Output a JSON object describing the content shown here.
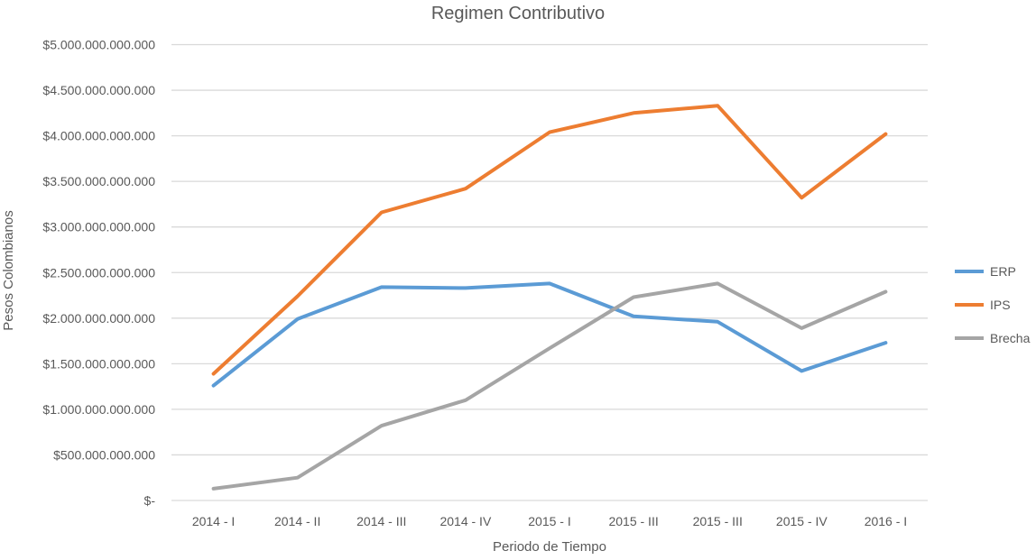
{
  "chart_data": {
    "type": "line",
    "title": "Regimen Contributivo",
    "xlabel": "Periodo de Tiempo",
    "ylabel": "Pesos Colombianos",
    "categories": [
      "2014 - I",
      "2014 - II",
      "2014 - III",
      "2014 - IV",
      "2015 - I",
      "2015 - III",
      "2015 - III",
      "2015 - IV",
      "2016 - I"
    ],
    "ylim": [
      0,
      5000000000000
    ],
    "ytick_values": [
      0,
      500000000000,
      1000000000000,
      1500000000000,
      2000000000000,
      2500000000000,
      3000000000000,
      3500000000000,
      4000000000000,
      4500000000000,
      5000000000000
    ],
    "ytick_labels": [
      "$-",
      "$500.000.000.000",
      "$1.000.000.000.000",
      "$1.500.000.000.000",
      "$2.000.000.000.000",
      "$2.500.000.000.000",
      "$3.000.000.000.000",
      "$3.500.000.000.000",
      "$4.000.000.000.000",
      "$4.500.000.000.000",
      "$5.000.000.000.000"
    ],
    "grid": true,
    "legend_position": "right",
    "series": [
      {
        "name": "ERP",
        "color": "#5B9BD5",
        "values": [
          1260000000000,
          1990000000000,
          2340000000000,
          2330000000000,
          2380000000000,
          2020000000000,
          1960000000000,
          1420000000000,
          1730000000000
        ]
      },
      {
        "name": "IPS",
        "color": "#ED7D31",
        "values": [
          1390000000000,
          2240000000000,
          3160000000000,
          3420000000000,
          4040000000000,
          4250000000000,
          4330000000000,
          3320000000000,
          4020000000000
        ]
      },
      {
        "name": "Brecha",
        "color": "#A5A5A5",
        "values": [
          130000000000,
          250000000000,
          820000000000,
          1100000000000,
          1670000000000,
          2230000000000,
          2380000000000,
          1890000000000,
          2290000000000
        ]
      }
    ]
  }
}
